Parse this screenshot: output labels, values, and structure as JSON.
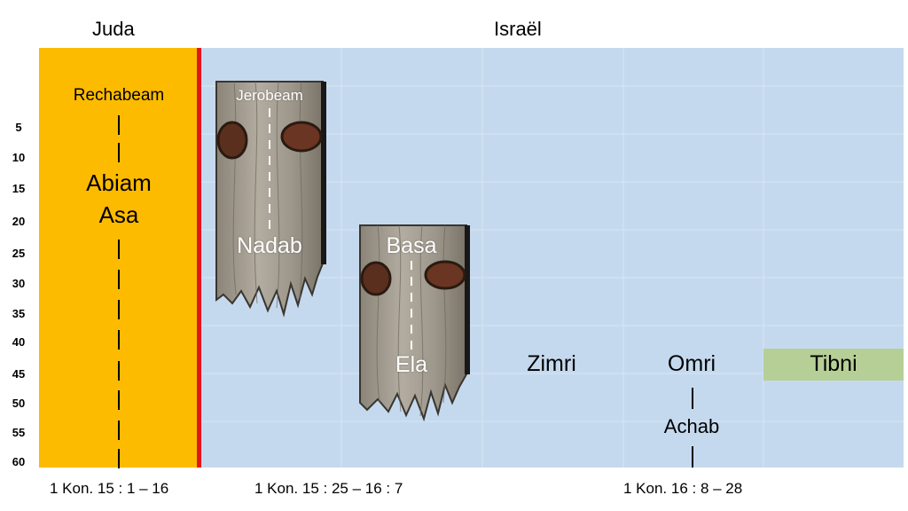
{
  "headers": {
    "judah": "Juda",
    "israel": "Israël"
  },
  "ticks": [
    "5",
    "10",
    "15",
    "20",
    "25",
    "30",
    "35",
    "40",
    "45",
    "50",
    "55",
    "60"
  ],
  "judah": {
    "first_king": "Rechabeam",
    "king2": "Abiam",
    "king3": "Asa"
  },
  "israel": {
    "jerobeam": "Jerobeam",
    "nadab": "Nadab",
    "basa": "Basa",
    "ela": "Ela",
    "zimri": "Zimri",
    "omri": "Omri",
    "achab": "Achab",
    "tibni": "Tibni"
  },
  "references": {
    "judah": "1 Kon. 15 : 1 – 16",
    "israel1": "1 Kon. 15 : 25 – 16 : 7",
    "israel2": "1 Kon. 16 : 8 – 28"
  },
  "colors": {
    "judah": "#fdbb00",
    "israel": "#c5d9ee",
    "divider": "#e3151b",
    "tibni": "#b6cf96"
  }
}
